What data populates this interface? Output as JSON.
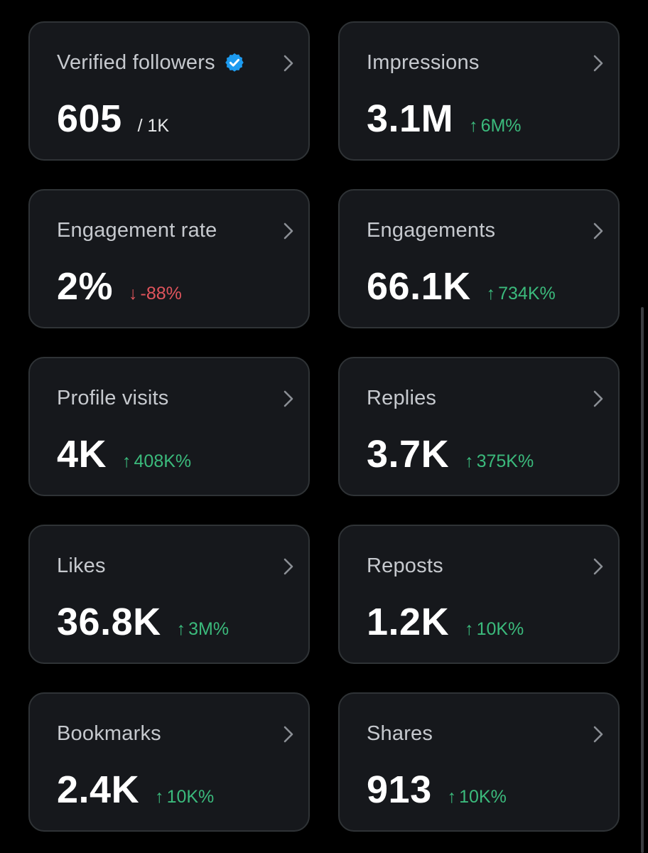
{
  "colors": {
    "background": "#000000",
    "card": "#16181c",
    "card_border": "#2f3336",
    "positive": "#3bba7c",
    "negative": "#e0545c",
    "verified_badge": "#1d9bf0"
  },
  "cards": [
    {
      "label": "Verified followers",
      "value": "605",
      "sub": "/ 1K",
      "delta": "",
      "arrow": "",
      "icon": "verified-badge-icon"
    },
    {
      "label": "Impressions",
      "value": "3.1M",
      "sub": "",
      "delta": "6M%",
      "arrow": "↑"
    },
    {
      "label": "Engagement rate",
      "value": "2%",
      "sub": "",
      "delta": "-88%",
      "arrow": "↓"
    },
    {
      "label": "Engagements",
      "value": "66.1K",
      "sub": "",
      "delta": "734K%",
      "arrow": "↑"
    },
    {
      "label": "Profile visits",
      "value": "4K",
      "sub": "",
      "delta": "408K%",
      "arrow": "↑"
    },
    {
      "label": "Replies",
      "value": "3.7K",
      "sub": "",
      "delta": "375K%",
      "arrow": "↑"
    },
    {
      "label": "Likes",
      "value": "36.8K",
      "sub": "",
      "delta": "3M%",
      "arrow": "↑"
    },
    {
      "label": "Reposts",
      "value": "1.2K",
      "sub": "",
      "delta": "10K%",
      "arrow": "↑"
    },
    {
      "label": "Bookmarks",
      "value": "2.4K",
      "sub": "",
      "delta": "10K%",
      "arrow": "↑"
    },
    {
      "label": "Shares",
      "value": "913",
      "sub": "",
      "delta": "10K%",
      "arrow": "↑"
    }
  ]
}
